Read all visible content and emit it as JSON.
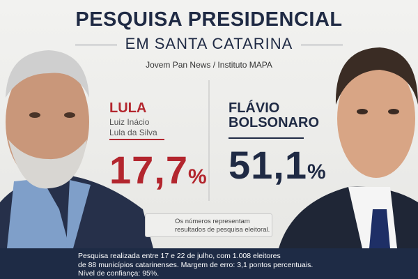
{
  "header": {
    "title": "PESQUISA PRESIDENCIAL",
    "subtitle": "EM SANTA CATARINA",
    "source": "Jovem Pan News / Instituto MAPA"
  },
  "candidates": [
    {
      "name_lines": [
        "LULA"
      ],
      "full_name_lines": [
        "Luiz Inácio",
        "Lula da Silva"
      ],
      "value": "17,7",
      "unit": "%"
    },
    {
      "name_lines": [
        "FLÁVIO",
        "BOLSONARO"
      ],
      "full_name_lines": [],
      "value": "51,1",
      "unit": "%"
    }
  ],
  "note_lines": [
    "Os números representam",
    "resultados de pesquisa eleitoral."
  ],
  "footer_lines": [
    "Pesquisa realizada entre 17 e 22 de julho, com 1.008 eleitores",
    "de 88 municípios catarinenses. Margem de erro: 3,1 pontos percentuais.",
    "Nível de confiança: 95%."
  ]
}
